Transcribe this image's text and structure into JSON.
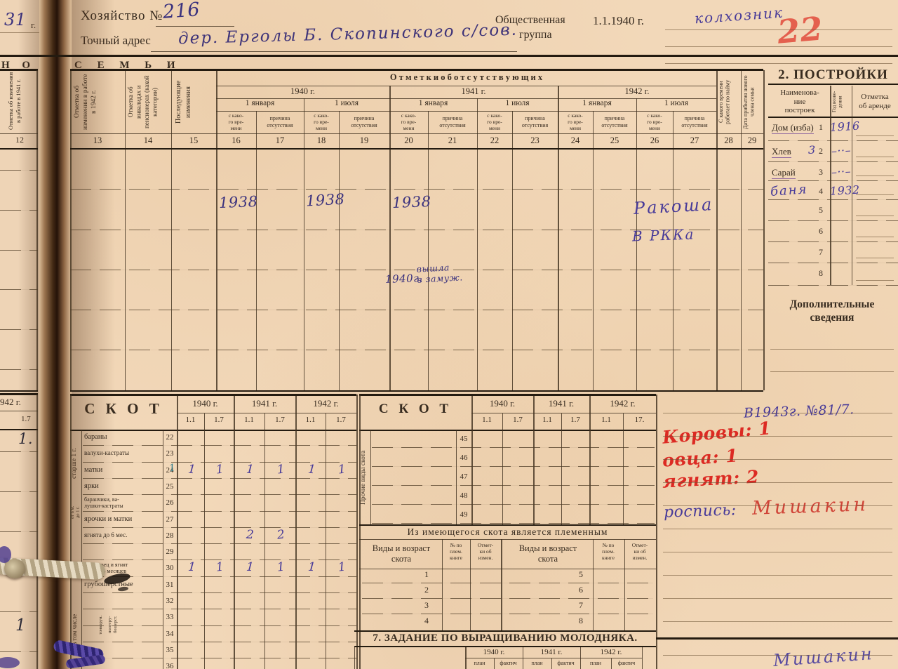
{
  "colors": {
    "paper": "#f2d8b9",
    "paper_left": "#eed4b6",
    "print_ink": "#372b1f",
    "rule": "#54422e",
    "purple_ink": "#473a99",
    "purple_dark": "#3b327e",
    "red_ink": "#dc2a23",
    "red_faded": "#e2544a",
    "teal_ink": "#2f7d8c"
  },
  "header": {
    "household_label": "Хозяйство №",
    "household_number": "216",
    "address_label": "Точный адрес",
    "address_value": "дер. Ерголы Б. Скопинского с/сов.",
    "social_group_label_1": "Общественная",
    "social_group_label_2": "группа",
    "date_label": "1.1.1940 г.",
    "social_group_value": "колхозник",
    "red_number": "22"
  },
  "left_edge": {
    "year_value": "31",
    "year_suffix": "г.",
    "banner_fragment": "Н  О  В",
    "col12_label": "Отметка об изменении в работе в 1941 г.",
    "col12_number": "12",
    "year_1942": "942 г.",
    "tick": "1.7",
    "mark_a": "1.",
    "mark_b": "1",
    "mark_c": "1"
  },
  "family_banner": "С  Е  М  Ь  И",
  "absences": {
    "title": "О т м е т к и   о б   о т с у т с т в у ю щ и х",
    "col13_label": "Отметка об изменении в работе в 1942 г.",
    "col14_label": "Отметка об инвалидах и пенсионерах (какой категории)",
    "col15_label": "Последующие изменения",
    "col28_label": "С какого времени работает по найму",
    "col29_label": "Дата прибытия нового члена семьи",
    "years": [
      "1940 г.",
      "1941 г.",
      "1942 г."
    ],
    "dates": [
      "1 января",
      "1 июля",
      "1 января",
      "1 июля",
      "1 января",
      "1 июля"
    ],
    "sub_from": "с како-\nго вре-\nмени",
    "sub_reason": "причина\nотсутствия",
    "column_numbers": [
      "13",
      "14",
      "15",
      "16",
      "17",
      "18",
      "19",
      "20",
      "21",
      "22",
      "23",
      "24",
      "25",
      "26",
      "27",
      "28",
      "29"
    ],
    "entries": [
      "1938",
      "1938",
      "1938",
      "Ракоша",
      "В РККа",
      "1940г.",
      "вышла\nв замуж."
    ]
  },
  "buildings": {
    "title": "2. ПОСТРОЙКИ",
    "col_name": "Наименова-\nние\nпостроек",
    "col_year": "Год возве- дения",
    "col_rent": "Отметка\nоб аренде",
    "rows": [
      {
        "name": "Дом (изба)",
        "hw_mark": "",
        "number": "1",
        "year": "1916"
      },
      {
        "name": "Хлев",
        "hw_mark": "3",
        "number": "2",
        "year": "–··–"
      },
      {
        "name": "Сарай",
        "hw_mark": "",
        "number": "3",
        "year": "–··–"
      },
      {
        "name": "",
        "hw_name": "баня",
        "hw_mark": "",
        "number": "4",
        "year": "1932"
      },
      {
        "name": "",
        "hw_mark": "",
        "number": "5",
        "year": ""
      },
      {
        "name": "",
        "hw_mark": "",
        "number": "6",
        "year": ""
      },
      {
        "name": "",
        "hw_mark": "",
        "number": "7",
        "year": ""
      },
      {
        "name": "",
        "hw_mark": "",
        "number": "8",
        "year": ""
      }
    ],
    "additional_title": "Дополнительные\nсведения"
  },
  "livestock_left": {
    "title": "С К О Т",
    "years": [
      "1940 г.",
      "1941 г.",
      "1942 г."
    ],
    "ticks": [
      "1.1",
      "1.7",
      "1.1",
      "1.7",
      "1.1",
      "1.7"
    ],
    "group_over_year": "старше 1 г.",
    "group_6m": "от 6 м.\nдо 1 г.",
    "group_incl": "в том числе",
    "group_fine": "тонкорун.",
    "group_semi": "полугру-\nбошерст.",
    "rows": [
      {
        "label": "бараны",
        "number": "22",
        "values": [
          "",
          "",
          "",
          "",
          "",
          ""
        ]
      },
      {
        "label": "валухи-кастраты",
        "number": "23",
        "values": [
          "",
          "",
          "",
          "",
          "",
          ""
        ]
      },
      {
        "label": "матки",
        "number": "24",
        "premark": "1",
        "values": [
          "1",
          "1",
          "1",
          "1",
          "1",
          "1"
        ]
      },
      {
        "label": "ярки",
        "number": "25",
        "values": [
          "",
          "",
          "",
          "",
          "",
          ""
        ]
      },
      {
        "label": "баранчики, ва-\nлушки-кастраты",
        "number": "26",
        "values": [
          "",
          "",
          "",
          "",
          "",
          ""
        ]
      },
      {
        "label": "ярочки и матки",
        "number": "27",
        "values": [
          "",
          "",
          "",
          "",
          "",
          ""
        ]
      },
      {
        "label": "ягнята до 6 мес.",
        "number": "28",
        "values": [
          "",
          "",
          "2",
          "2",
          "",
          ""
        ]
      },
      {
        "label": "",
        "number": "29",
        "values": [
          "",
          "",
          "",
          "",
          "",
          ""
        ]
      },
      {
        "label": "всего овец и ягнят\nстарше 6 месяцев",
        "number": "30",
        "values": [
          "1",
          "1",
          "1",
          "1",
          "1",
          "1"
        ]
      },
      {
        "label": "грубошерстные",
        "number": "31",
        "values": [
          "",
          "",
          "",
          "",
          "",
          ""
        ]
      },
      {
        "label": "",
        "number": "32",
        "values": [
          "",
          "",
          "",
          "",
          "",
          ""
        ]
      },
      {
        "label": "",
        "number": "33",
        "values": [
          "",
          "",
          "",
          "",
          "",
          ""
        ]
      },
      {
        "label": "",
        "number": "34",
        "values": [
          "",
          "",
          "",
          "",
          "",
          ""
        ]
      },
      {
        "label": "",
        "number": "35",
        "values": [
          "",
          "",
          "",
          "",
          "",
          ""
        ]
      },
      {
        "label": "",
        "number": "36",
        "values": [
          "",
          "",
          "",
          "",
          "",
          ""
        ]
      }
    ]
  },
  "livestock_right": {
    "title": "С К О Т",
    "vertical_label": "Прочие виды скота",
    "years": [
      "1940 г.",
      "1941 г.",
      "1942 г."
    ],
    "ticks": [
      "1.1",
      "1.7",
      "1.1",
      "1.7",
      "1.1",
      "17."
    ],
    "row_numbers": [
      "45",
      "46",
      "47",
      "48",
      "49"
    ]
  },
  "breeding": {
    "title": "Из имеющегося скота является племенным",
    "col_kind": "Виды и возраст\nскота",
    "col_book": "№ по\nплем.\nкниге",
    "col_note": "Отмет-\nки об\nизмен.",
    "left_row_numbers": [
      "1",
      "2",
      "3",
      "4"
    ],
    "right_row_numbers": [
      "5",
      "6",
      "7",
      "8"
    ]
  },
  "task7": {
    "title": "7. ЗАДАНИЕ ПО ВЫРАЩИВАНИЮ МОЛОДНЯКА.",
    "years": [
      "1940 г.",
      "1941 г.",
      "1942 г."
    ],
    "subcols": [
      "план",
      "фактич"
    ]
  },
  "notes": {
    "ref": "В1943г. №81/7.",
    "cows": "Коровы: 1",
    "sheep": "овца: 1",
    "lambs": "ягнят: 2",
    "sign_label": "роспись:",
    "sign_name": "Мишакин",
    "bottom_sign": "Мишакин"
  }
}
